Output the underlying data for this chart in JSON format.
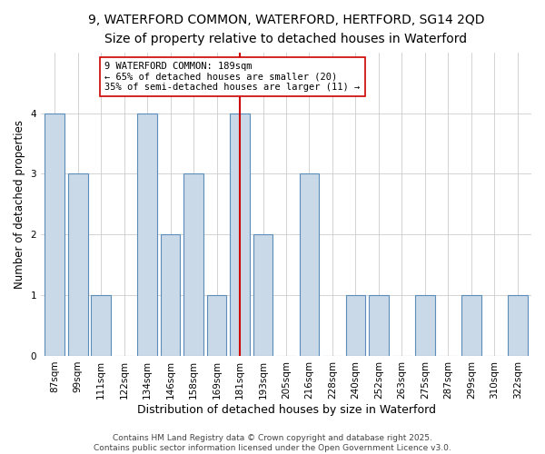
{
  "title": "9, WATERFORD COMMON, WATERFORD, HERTFORD, SG14 2QD",
  "subtitle": "Size of property relative to detached houses in Waterford",
  "xlabel": "Distribution of detached houses by size in Waterford",
  "ylabel": "Number of detached properties",
  "categories": [
    "87sqm",
    "99sqm",
    "111sqm",
    "122sqm",
    "134sqm",
    "146sqm",
    "158sqm",
    "169sqm",
    "181sqm",
    "193sqm",
    "205sqm",
    "216sqm",
    "228sqm",
    "240sqm",
    "252sqm",
    "263sqm",
    "275sqm",
    "287sqm",
    "299sqm",
    "310sqm",
    "322sqm"
  ],
  "values": [
    4,
    3,
    1,
    0,
    4,
    2,
    3,
    1,
    4,
    2,
    0,
    3,
    0,
    1,
    1,
    0,
    1,
    0,
    1,
    0,
    1
  ],
  "bar_color": "#c9d9e8",
  "bar_edge_color": "#5b8db8",
  "vline_x_index": 8,
  "vline_color": "#cc0000",
  "annotation_line1": "9 WATERFORD COMMON: 189sqm",
  "annotation_line2": "← 65% of detached houses are smaller (20)",
  "annotation_line3": "35% of semi-detached houses are larger (11) →",
  "annotation_box_color": "#ffffff",
  "annotation_box_edge_color": "#cc0000",
  "ylim": [
    0,
    5
  ],
  "yticks": [
    0,
    1,
    2,
    3,
    4,
    5
  ],
  "background_color": "#ffffff",
  "footer_line1": "Contains HM Land Registry data © Crown copyright and database right 2025.",
  "footer_line2": "Contains public sector information licensed under the Open Government Licence v3.0.",
  "title_fontsize": 10,
  "subtitle_fontsize": 9,
  "xlabel_fontsize": 9,
  "ylabel_fontsize": 8.5,
  "tick_fontsize": 7.5,
  "annotation_fontsize": 7.5,
  "footer_fontsize": 6.5
}
